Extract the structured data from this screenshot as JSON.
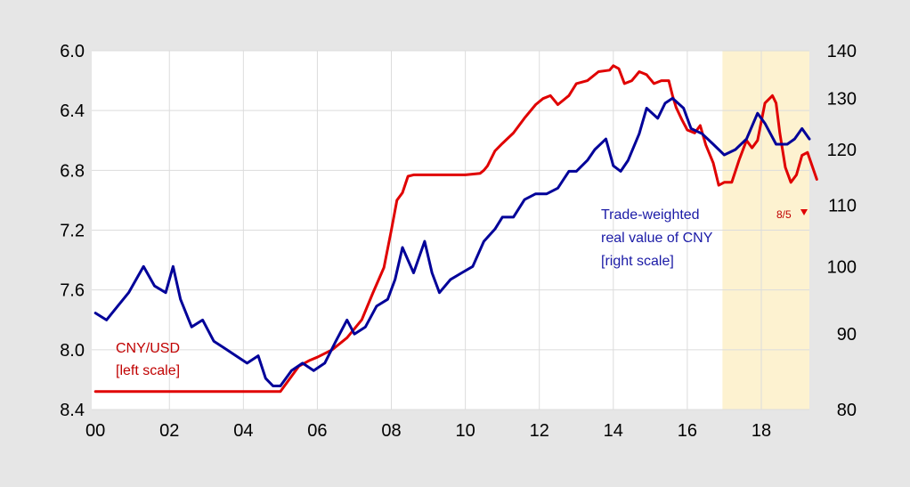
{
  "chart_data": {
    "type": "line",
    "title": "",
    "x_tick_labels": [
      "00",
      "02",
      "04",
      "06",
      "08",
      "10",
      "12",
      "14",
      "16",
      "18"
    ],
    "x_tick_years": [
      2000,
      2002,
      2004,
      2006,
      2008,
      2010,
      2012,
      2014,
      2016,
      2018
    ],
    "xlim": [
      1999.9,
      2019.3
    ],
    "left_axis": {
      "ticks": [
        "6.0",
        "6.4",
        "6.8",
        "7.2",
        "7.6",
        "8.0",
        "8.4"
      ],
      "ylim": [
        8.4,
        6.0
      ],
      "inverted": true
    },
    "right_axis": {
      "ticks": [
        "140",
        "130",
        "120",
        "110",
        "100",
        "90",
        "80"
      ],
      "ylim": [
        80,
        140
      ],
      "log_scale": true
    },
    "shaded_region": {
      "x": [
        2016.95,
        2019.3
      ],
      "color": "#fdf2d0"
    },
    "grid": true,
    "series": [
      {
        "name": "CNY/USD",
        "axis": "left",
        "color": "#e00000",
        "x": [
          2000.0,
          2005.0,
          2005.5,
          2005.8,
          2006.0,
          2006.4,
          2006.8,
          2007.2,
          2007.5,
          2007.8,
          2008.0,
          2008.15,
          2008.3,
          2008.45,
          2008.6,
          2008.8,
          2009.0,
          2009.5,
          2010.0,
          2010.4,
          2010.5,
          2010.6,
          2010.8,
          2011.0,
          2011.3,
          2011.6,
          2011.9,
          2012.1,
          2012.3,
          2012.5,
          2012.8,
          2013.0,
          2013.3,
          2013.6,
          2013.9,
          2014.0,
          2014.15,
          2014.3,
          2014.5,
          2014.7,
          2014.9,
          2015.1,
          2015.3,
          2015.5,
          2015.6,
          2015.7,
          2015.85,
          2016.0,
          2016.2,
          2016.35,
          2016.5,
          2016.7,
          2016.85,
          2017.0,
          2017.2,
          2017.4,
          2017.6,
          2017.75,
          2017.9,
          2018.1,
          2018.3,
          2018.4,
          2018.5,
          2018.65,
          2018.8,
          2018.95,
          2019.1,
          2019.25,
          2019.5
        ],
        "y": [
          8.28,
          8.28,
          8.11,
          8.07,
          8.05,
          8.0,
          7.92,
          7.8,
          7.62,
          7.45,
          7.2,
          7.0,
          6.95,
          6.84,
          6.83,
          6.83,
          6.83,
          6.83,
          6.83,
          6.82,
          6.8,
          6.77,
          6.67,
          6.62,
          6.55,
          6.45,
          6.36,
          6.32,
          6.3,
          6.36,
          6.3,
          6.22,
          6.2,
          6.14,
          6.13,
          6.1,
          6.12,
          6.22,
          6.2,
          6.14,
          6.16,
          6.22,
          6.2,
          6.2,
          6.3,
          6.38,
          6.46,
          6.53,
          6.55,
          6.5,
          6.63,
          6.75,
          6.9,
          6.88,
          6.88,
          6.73,
          6.6,
          6.65,
          6.6,
          6.35,
          6.3,
          6.35,
          6.55,
          6.78,
          6.88,
          6.83,
          6.7,
          6.68,
          6.86
        ]
      },
      {
        "name": "Trade-weighted real value of CNY",
        "axis": "right",
        "color": "#000099",
        "x": [
          2000.0,
          2000.3,
          2000.6,
          2000.9,
          2001.1,
          2001.3,
          2001.6,
          2001.9,
          2002.1,
          2002.3,
          2002.6,
          2002.9,
          2003.2,
          2003.5,
          2003.8,
          2004.1,
          2004.4,
          2004.6,
          2004.8,
          2005.0,
          2005.3,
          2005.6,
          2005.9,
          2006.2,
          2006.5,
          2006.8,
          2007.0,
          2007.3,
          2007.6,
          2007.9,
          2008.1,
          2008.3,
          2008.6,
          2008.9,
          2009.1,
          2009.3,
          2009.6,
          2009.9,
          2010.2,
          2010.5,
          2010.8,
          2011.0,
          2011.3,
          2011.6,
          2011.9,
          2012.2,
          2012.5,
          2012.8,
          2013.0,
          2013.3,
          2013.5,
          2013.8,
          2014.0,
          2014.2,
          2014.4,
          2014.7,
          2014.9,
          2015.2,
          2015.4,
          2015.6,
          2015.9,
          2016.1,
          2016.4,
          2016.7,
          2017.0,
          2017.3,
          2017.6,
          2017.9,
          2018.1,
          2018.4,
          2018.7,
          2018.9,
          2019.1,
          2019.3
        ],
        "y": [
          93,
          92,
          94,
          96,
          98,
          100,
          97,
          96,
          100,
          95,
          91,
          92,
          89,
          88,
          87,
          86,
          87,
          84,
          83,
          83,
          85,
          86,
          85,
          86,
          89,
          92,
          90,
          91,
          94,
          95,
          98,
          103,
          99,
          104,
          99,
          96,
          98,
          99,
          100,
          104,
          106,
          108,
          108,
          111,
          112,
          112,
          113,
          116,
          116,
          118,
          120,
          122,
          117,
          116,
          118,
          123,
          128,
          126,
          129,
          130,
          128,
          124,
          123,
          121,
          119,
          120,
          122,
          127,
          125,
          121,
          121,
          122,
          124,
          122
        ]
      }
    ],
    "annotations": {
      "cny_usd": [
        "CNY/USD",
        "[left scale]"
      ],
      "trade_weighted": [
        "Trade-weighted",
        "real value of CNY",
        "[right scale]"
      ],
      "date_marker": "8/5"
    }
  }
}
